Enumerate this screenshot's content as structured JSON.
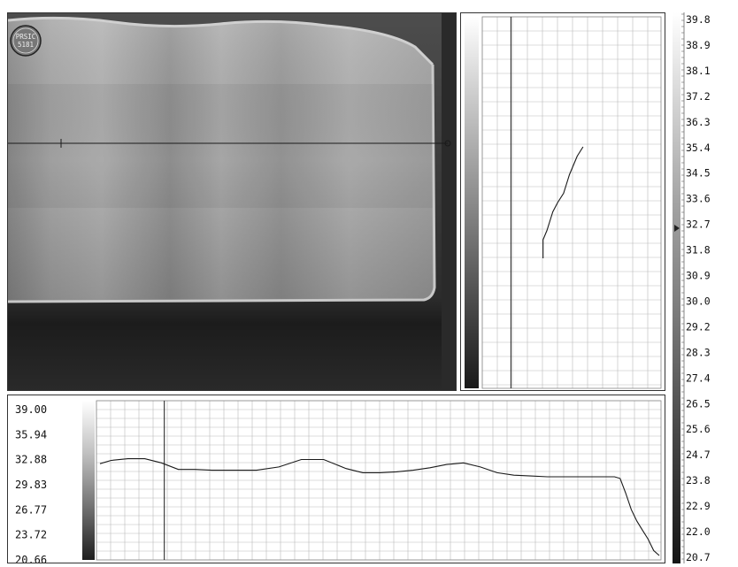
{
  "colors": {
    "grid": "#b9b9b9",
    "profile_line": "#1a1a1a",
    "background": "#ffffff",
    "thermal_dark": "#3a3a3a",
    "thermal_light": "#bdbdbd"
  },
  "thermal_image": {
    "logo_text": [
      "PRSIC",
      "5181"
    ]
  },
  "chart_data": [
    {
      "type": "line",
      "name": "horizontal-profile",
      "ylim": [
        20.66,
        39.0
      ],
      "y_tick_labels": [
        "39.00",
        "35.94",
        "32.88",
        "29.83",
        "26.77",
        "23.72",
        "20.66"
      ],
      "x": [
        0,
        2,
        5,
        8,
        11,
        14,
        17,
        20,
        24,
        28,
        32,
        36,
        40,
        44,
        47,
        50,
        53,
        56,
        59,
        62,
        65,
        68,
        71,
        74,
        77,
        80,
        83,
        86,
        89,
        92,
        93,
        94,
        95,
        96,
        97,
        98,
        99,
        100
      ],
      "y": [
        32.4,
        32.8,
        33.0,
        33.0,
        32.5,
        31.7,
        31.7,
        31.6,
        31.6,
        31.6,
        32.0,
        32.9,
        32.9,
        31.8,
        31.3,
        31.3,
        31.4,
        31.6,
        31.9,
        32.3,
        32.5,
        32.0,
        31.3,
        31.0,
        30.9,
        30.8,
        30.8,
        30.8,
        30.8,
        30.8,
        30.6,
        28.8,
        26.8,
        25.4,
        24.3,
        23.2,
        21.8,
        21.2
      ],
      "cursor_x": 11.5,
      "grid": true
    },
    {
      "type": "line",
      "name": "vertical-profile",
      "xlim": [
        20.66,
        39.0
      ],
      "y": [
        35.0,
        37.5,
        40.0,
        42.5,
        45.0,
        47.5,
        50.0,
        52.5,
        55.0,
        57.5,
        60.0,
        62.5,
        65.0
      ],
      "x": [
        31.0,
        30.4,
        30.0,
        29.6,
        29.3,
        29.0,
        28.4,
        27.9,
        27.6,
        27.3,
        26.9,
        26.9,
        26.9
      ],
      "cursor_x": 23.6,
      "grid": true
    },
    {
      "type": "colorbar",
      "name": "temperature-scale",
      "range": [
        20.7,
        39.8
      ],
      "labels": [
        "39.8",
        "38.9",
        "38.1",
        "37.2",
        "36.3",
        "35.4",
        "34.5",
        "33.6",
        "32.7",
        "31.8",
        "30.9",
        "30.0",
        "29.2",
        "28.3",
        "27.4",
        "26.5",
        "25.6",
        "24.7",
        "23.8",
        "22.9",
        "22.0",
        "20.7"
      ]
    }
  ]
}
